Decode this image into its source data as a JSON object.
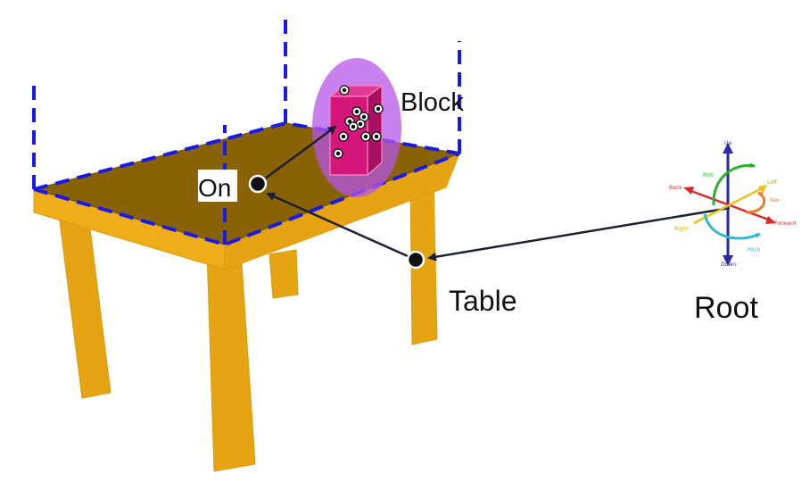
{
  "labels": {
    "block": "Block",
    "on": "On",
    "table": "Table",
    "root": "Root"
  },
  "gizmo": {
    "up": "Up",
    "down": "Down",
    "roll": "Roll",
    "back": "Back",
    "left": "Left",
    "right": "Right",
    "yaw": "Yaw",
    "forward": "Forward",
    "pitch": "Pitch"
  },
  "colors": {
    "table_top": "#8a6206",
    "table_legs": "#e6a412",
    "region_outline": "#1a1ae6",
    "block": "#d4157a",
    "block_glow": "#b455e8",
    "arrows": "#1c2033"
  }
}
